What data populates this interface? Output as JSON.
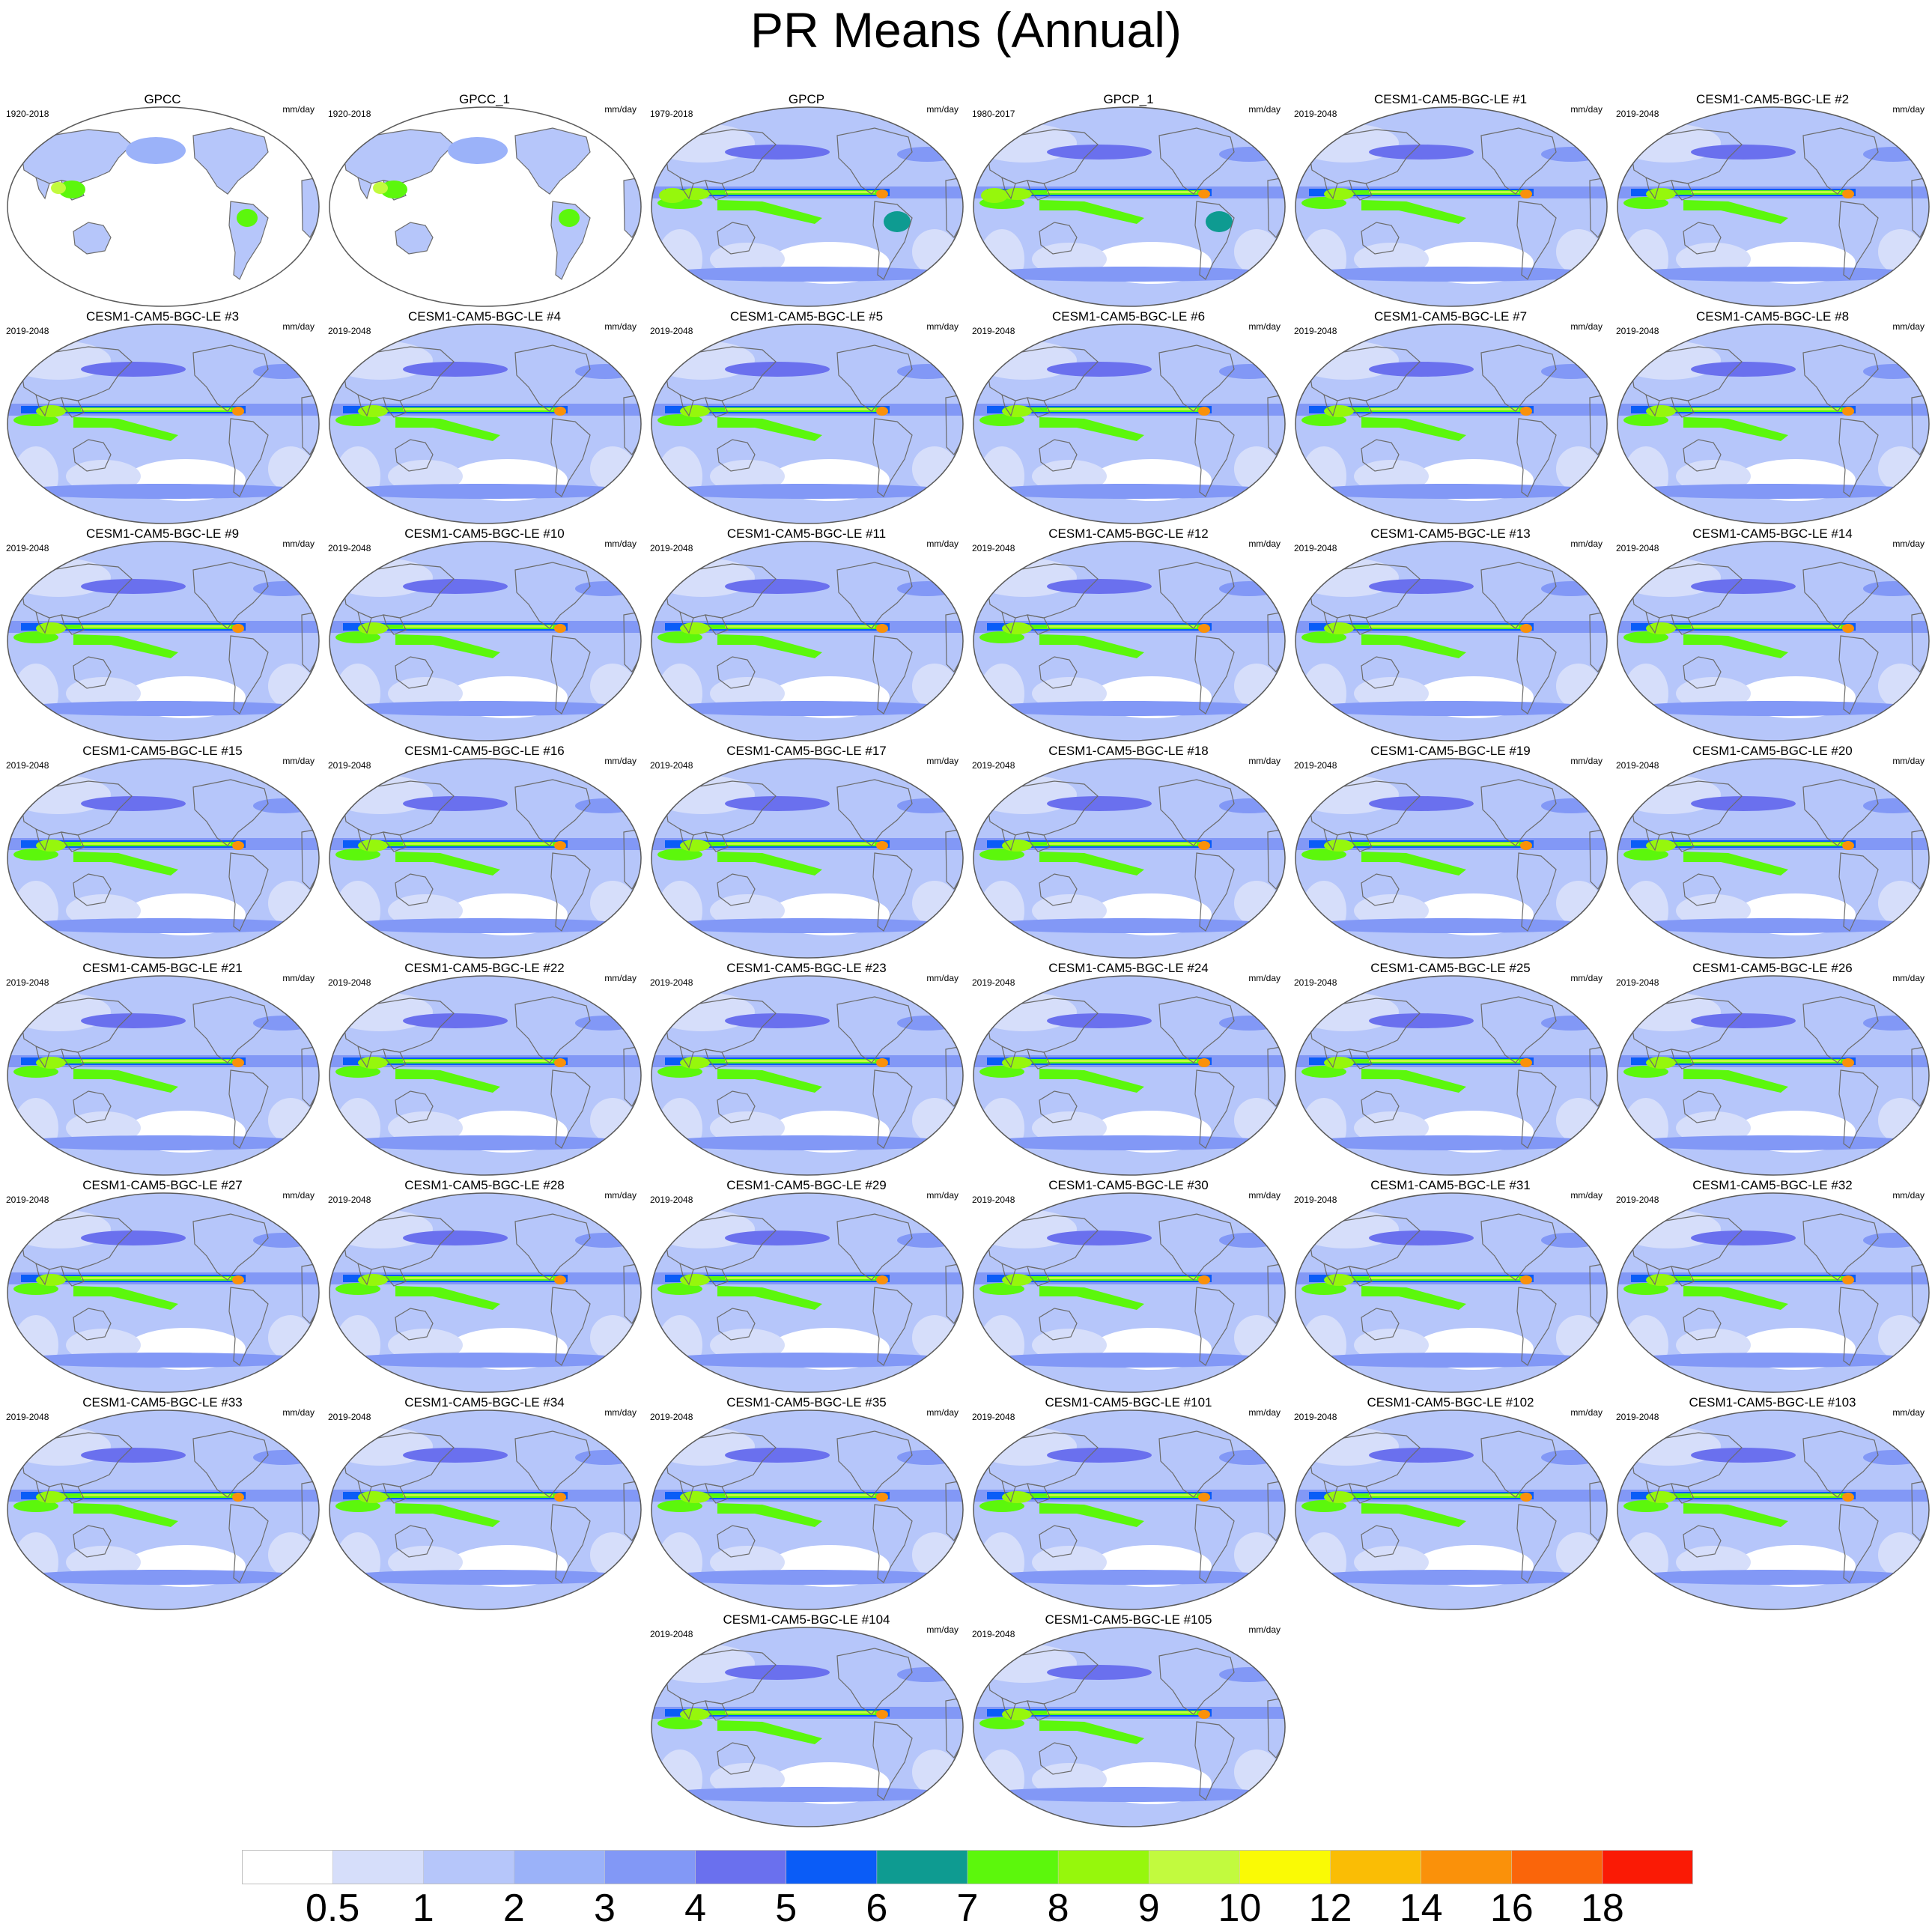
{
  "figure": {
    "title": "PR Means (Annual)",
    "units": "mm/day"
  },
  "panels": [
    {
      "title": "GPCC",
      "period": "1920-2018",
      "kind": "gpcc"
    },
    {
      "title": "GPCC_1",
      "period": "1920-2018",
      "kind": "gpcc"
    },
    {
      "title": "GPCP",
      "period": "1979-2018",
      "kind": "gpcp"
    },
    {
      "title": "GPCP_1",
      "period": "1980-2017",
      "kind": "gpcp"
    },
    {
      "title": "CESM1-CAM5-BGC-LE #1",
      "period": "2019-2048",
      "kind": "model"
    },
    {
      "title": "CESM1-CAM5-BGC-LE #2",
      "period": "2019-2048",
      "kind": "model"
    },
    {
      "title": "CESM1-CAM5-BGC-LE #3",
      "period": "2019-2048",
      "kind": "model"
    },
    {
      "title": "CESM1-CAM5-BGC-LE #4",
      "period": "2019-2048",
      "kind": "model"
    },
    {
      "title": "CESM1-CAM5-BGC-LE #5",
      "period": "2019-2048",
      "kind": "model"
    },
    {
      "title": "CESM1-CAM5-BGC-LE #6",
      "period": "2019-2048",
      "kind": "model"
    },
    {
      "title": "CESM1-CAM5-BGC-LE #7",
      "period": "2019-2048",
      "kind": "model"
    },
    {
      "title": "CESM1-CAM5-BGC-LE #8",
      "period": "2019-2048",
      "kind": "model"
    },
    {
      "title": "CESM1-CAM5-BGC-LE #9",
      "period": "2019-2048",
      "kind": "model"
    },
    {
      "title": "CESM1-CAM5-BGC-LE #10",
      "period": "2019-2048",
      "kind": "model"
    },
    {
      "title": "CESM1-CAM5-BGC-LE #11",
      "period": "2019-2048",
      "kind": "model"
    },
    {
      "title": "CESM1-CAM5-BGC-LE #12",
      "period": "2019-2048",
      "kind": "model"
    },
    {
      "title": "CESM1-CAM5-BGC-LE #13",
      "period": "2019-2048",
      "kind": "model"
    },
    {
      "title": "CESM1-CAM5-BGC-LE #14",
      "period": "2019-2048",
      "kind": "model"
    },
    {
      "title": "CESM1-CAM5-BGC-LE #15",
      "period": "2019-2048",
      "kind": "model"
    },
    {
      "title": "CESM1-CAM5-BGC-LE #16",
      "period": "2019-2048",
      "kind": "model"
    },
    {
      "title": "CESM1-CAM5-BGC-LE #17",
      "period": "2019-2048",
      "kind": "model"
    },
    {
      "title": "CESM1-CAM5-BGC-LE #18",
      "period": "2019-2048",
      "kind": "model"
    },
    {
      "title": "CESM1-CAM5-BGC-LE #19",
      "period": "2019-2048",
      "kind": "model"
    },
    {
      "title": "CESM1-CAM5-BGC-LE #20",
      "period": "2019-2048",
      "kind": "model"
    },
    {
      "title": "CESM1-CAM5-BGC-LE #21",
      "period": "2019-2048",
      "kind": "model"
    },
    {
      "title": "CESM1-CAM5-BGC-LE #22",
      "period": "2019-2048",
      "kind": "model"
    },
    {
      "title": "CESM1-CAM5-BGC-LE #23",
      "period": "2019-2048",
      "kind": "model"
    },
    {
      "title": "CESM1-CAM5-BGC-LE #24",
      "period": "2019-2048",
      "kind": "model"
    },
    {
      "title": "CESM1-CAM5-BGC-LE #25",
      "period": "2019-2048",
      "kind": "model"
    },
    {
      "title": "CESM1-CAM5-BGC-LE #26",
      "period": "2019-2048",
      "kind": "model"
    },
    {
      "title": "CESM1-CAM5-BGC-LE #27",
      "period": "2019-2048",
      "kind": "model"
    },
    {
      "title": "CESM1-CAM5-BGC-LE #28",
      "period": "2019-2048",
      "kind": "model"
    },
    {
      "title": "CESM1-CAM5-BGC-LE #29",
      "period": "2019-2048",
      "kind": "model"
    },
    {
      "title": "CESM1-CAM5-BGC-LE #30",
      "period": "2019-2048",
      "kind": "model"
    },
    {
      "title": "CESM1-CAM5-BGC-LE #31",
      "period": "2019-2048",
      "kind": "model"
    },
    {
      "title": "CESM1-CAM5-BGC-LE #32",
      "period": "2019-2048",
      "kind": "model"
    },
    {
      "title": "CESM1-CAM5-BGC-LE #33",
      "period": "2019-2048",
      "kind": "model"
    },
    {
      "title": "CESM1-CAM5-BGC-LE #34",
      "period": "2019-2048",
      "kind": "model"
    },
    {
      "title": "CESM1-CAM5-BGC-LE #35",
      "period": "2019-2048",
      "kind": "model"
    },
    {
      "title": "CESM1-CAM5-BGC-LE #101",
      "period": "2019-2048",
      "kind": "model"
    },
    {
      "title": "CESM1-CAM5-BGC-LE #102",
      "period": "2019-2048",
      "kind": "model"
    },
    {
      "title": "CESM1-CAM5-BGC-LE #103",
      "period": "2019-2048",
      "kind": "model"
    },
    {
      "title": "CESM1-CAM5-BGC-LE #104",
      "period": "2019-2048",
      "kind": "model"
    },
    {
      "title": "CESM1-CAM5-BGC-LE #105",
      "period": "2019-2048",
      "kind": "model"
    }
  ],
  "colorbar": {
    "labels": [
      "0.5",
      "1",
      "2",
      "3",
      "4",
      "5",
      "6",
      "7",
      "8",
      "9",
      "10",
      "12",
      "14",
      "16",
      "18"
    ],
    "colors": [
      "#ffffff",
      "#d6defa",
      "#b6c6fa",
      "#9bb2f9",
      "#8298f6",
      "#6a70ee",
      "#0a5cf7",
      "#0e9b91",
      "#5cf70c",
      "#96f70c",
      "#c2fa3e",
      "#fafa05",
      "#fabd05",
      "#fa910a",
      "#fa650a",
      "#fa1a05"
    ]
  },
  "palette": {
    "land_dry": "#ffffff",
    "coast": "#6b6b6b",
    "map_border": "#5a5a5a"
  }
}
